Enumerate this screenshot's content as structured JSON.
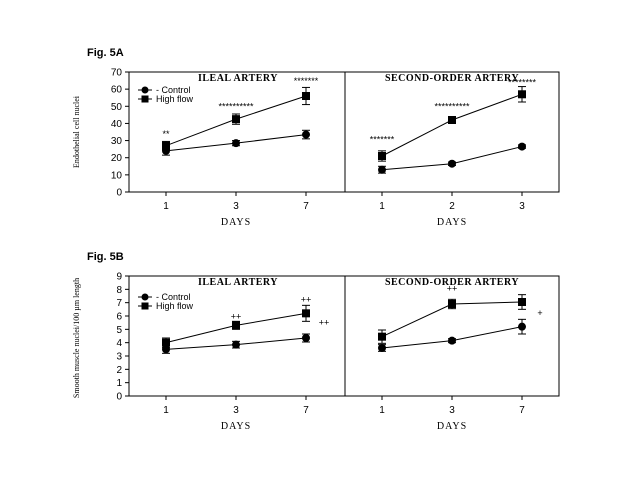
{
  "figures": [
    {
      "label": "Fig. 5A",
      "ylabel": "Endothelial cell nuclei",
      "ylim": [
        0,
        70
      ],
      "yticks": [
        0,
        10,
        20,
        30,
        40,
        50,
        60,
        70
      ],
      "legend": {
        "control": "- Control",
        "high_flow": "High flow"
      },
      "panels": [
        {
          "title": "ILEAL ARTERY",
          "xlabel": "DAYS",
          "categories": [
            "1",
            "3",
            "7"
          ],
          "series": [
            {
              "name": "Control",
              "marker": "circle",
              "values": [
                24,
                28.5,
                33.5
              ],
              "err": [
                2.5,
                1.5,
                2.5
              ]
            },
            {
              "name": "High flow",
              "marker": "square",
              "values": [
                27,
                42.5,
                56
              ],
              "err": [
                2.5,
                3,
                5
              ]
            }
          ],
          "annotations": [
            {
              "x": "1",
              "y": 32,
              "text": "**"
            },
            {
              "x": "3",
              "y": 48,
              "text": "**********"
            },
            {
              "x": "7",
              "y": 63,
              "text": "*******"
            }
          ]
        },
        {
          "title": "SECOND-ORDER ARTERY",
          "xlabel": "DAYS",
          "categories": [
            "1",
            "2",
            "3"
          ],
          "series": [
            {
              "name": "Control",
              "marker": "circle",
              "values": [
                13,
                16.5,
                26.5
              ],
              "err": [
                2,
                1,
                1
              ]
            },
            {
              "name": "High flow",
              "marker": "square",
              "values": [
                21,
                42,
                57
              ],
              "err": [
                3,
                1.5,
                4.5
              ]
            }
          ],
          "annotations": [
            {
              "x": "1",
              "y": 29,
              "text": "*******"
            },
            {
              "x": "2",
              "y": 48,
              "text": "**********"
            },
            {
              "x": "3",
              "y": 62,
              "text": "********"
            }
          ]
        }
      ]
    },
    {
      "label": "Fig. 5B",
      "ylabel": "Smooth muscle nuclei/100 µm length",
      "ylim": [
        0,
        9
      ],
      "yticks": [
        0,
        1,
        2,
        3,
        4,
        5,
        6,
        7,
        8,
        9
      ],
      "legend": {
        "control": "- Control",
        "high_flow": "High flow"
      },
      "panels": [
        {
          "title": "ILEAL ARTERY",
          "xlabel": "DAYS",
          "categories": [
            "1",
            "3",
            "7"
          ],
          "series": [
            {
              "name": "Control",
              "marker": "circle",
              "values": [
                3.5,
                3.85,
                4.35
              ],
              "err": [
                0.3,
                0.25,
                0.3
              ]
            },
            {
              "name": "High flow",
              "marker": "square",
              "values": [
                4.0,
                5.3,
                6.2
              ],
              "err": [
                0.35,
                0.3,
                0.6
              ]
            }
          ],
          "annotations": [
            {
              "x": "3",
              "y": 5.75,
              "text": "++"
            },
            {
              "x": "7",
              "y": 7.0,
              "text": "++"
            },
            {
              "x": "7+",
              "y": 5.3,
              "text": "++"
            }
          ]
        },
        {
          "title": "SECOND-ORDER ARTERY",
          "xlabel": "DAYS",
          "categories": [
            "1",
            "3",
            "7"
          ],
          "series": [
            {
              "name": "Control",
              "marker": "circle",
              "values": [
                3.6,
                4.15,
                5.2
              ],
              "err": [
                0.25,
                0.15,
                0.55
              ]
            },
            {
              "name": "High flow",
              "marker": "square",
              "values": [
                4.45,
                6.9,
                7.05
              ],
              "err": [
                0.5,
                0.35,
                0.55
              ]
            }
          ],
          "annotations": [
            {
              "x": "3",
              "y": 7.85,
              "text": "++"
            },
            {
              "x": "7+",
              "y": 6.0,
              "text": "+"
            }
          ]
        }
      ]
    }
  ],
  "chart_data": [
    {
      "type": "line",
      "title": "ILEAL ARTERY",
      "xlabel": "DAYS",
      "ylabel": "Endothelial cell nuclei",
      "categories": [
        "1",
        "3",
        "7"
      ],
      "ylim": [
        0,
        70
      ],
      "series": [
        {
          "name": "Control",
          "values": [
            24,
            28.5,
            33.5
          ]
        },
        {
          "name": "High flow",
          "values": [
            27,
            42.5,
            56
          ]
        }
      ]
    },
    {
      "type": "line",
      "title": "SECOND-ORDER ARTERY",
      "xlabel": "DAYS",
      "categories": [
        "1",
        "2",
        "3"
      ],
      "ylim": [
        0,
        70
      ],
      "series": [
        {
          "name": "Control",
          "values": [
            13,
            16.5,
            26.5
          ]
        },
        {
          "name": "High flow",
          "values": [
            21,
            42,
            57
          ]
        }
      ]
    },
    {
      "type": "line",
      "title": "ILEAL ARTERY",
      "xlabel": "DAYS",
      "ylabel": "Smooth muscle nuclei/100 µm length",
      "categories": [
        "1",
        "3",
        "7"
      ],
      "ylim": [
        0,
        9
      ],
      "series": [
        {
          "name": "Control",
          "values": [
            3.5,
            3.85,
            4.35
          ]
        },
        {
          "name": "High flow",
          "values": [
            4.0,
            5.3,
            6.2
          ]
        }
      ]
    },
    {
      "type": "line",
      "title": "SECOND-ORDER ARTERY",
      "xlabel": "DAYS",
      "categories": [
        "1",
        "3",
        "7"
      ],
      "ylim": [
        0,
        9
      ],
      "series": [
        {
          "name": "Control",
          "values": [
            3.6,
            4.15,
            5.2
          ]
        },
        {
          "name": "High flow",
          "values": [
            4.45,
            6.9,
            7.05
          ]
        }
      ]
    }
  ]
}
